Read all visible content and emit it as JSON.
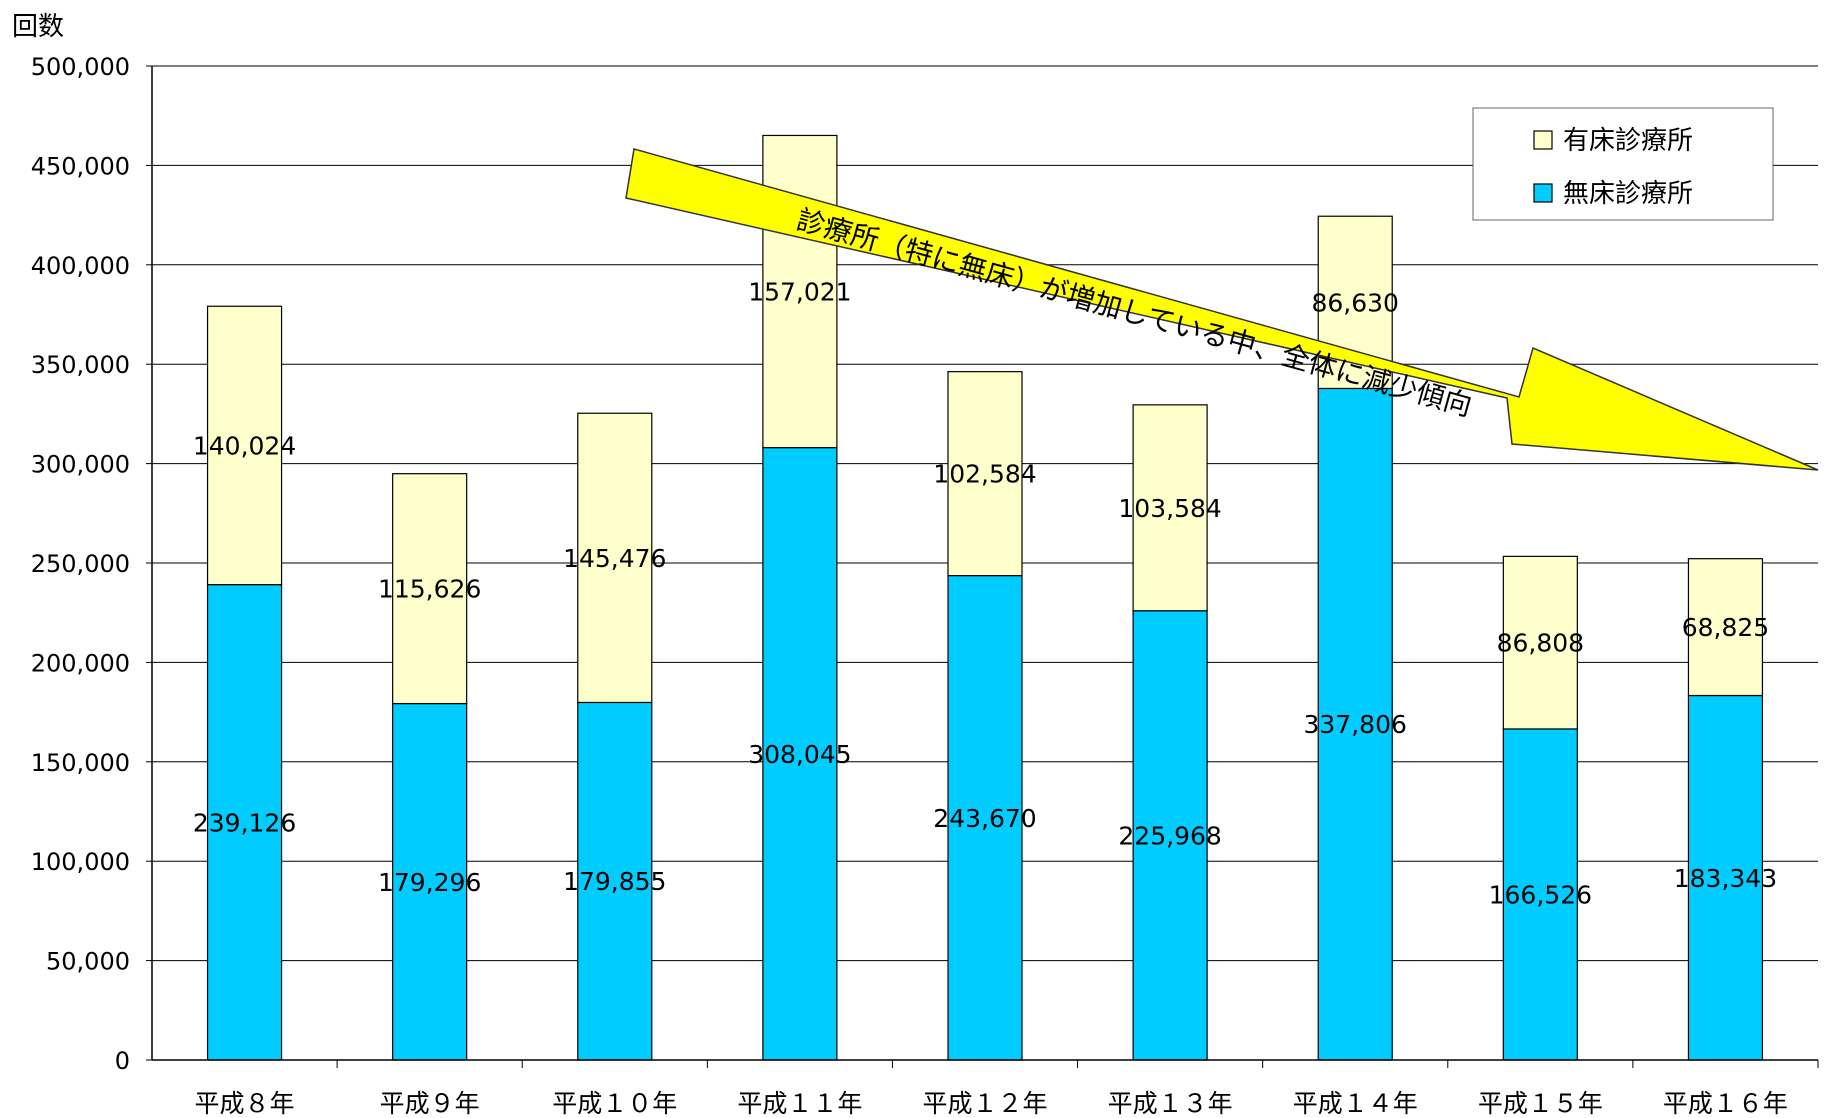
{
  "chart_data": {
    "type": "bar",
    "stacked": true,
    "ylabel": "回数",
    "ylim": [
      0,
      500000
    ],
    "yticks": [
      0,
      50000,
      100000,
      150000,
      200000,
      250000,
      300000,
      350000,
      400000,
      450000,
      500000
    ],
    "ytick_labels": [
      "0",
      "50,000",
      "100,000",
      "150,000",
      "200,000",
      "250,000",
      "300,000",
      "350,000",
      "400,000",
      "450,000",
      "500,000"
    ],
    "grid": true,
    "legend_position": "top-right",
    "categories": [
      "平成８年",
      "平成９年",
      "平成１０年",
      "平成１１年",
      "平成１２年",
      "平成１３年",
      "平成１４年",
      "平成１５年",
      "平成１６年"
    ],
    "series": [
      {
        "name": "無床診療所",
        "color": "#00ccff",
        "values": [
          239126,
          179296,
          179855,
          308045,
          243670,
          225968,
          337806,
          166526,
          183343
        ],
        "labels": [
          "239,126",
          "179,296",
          "179,855",
          "308,045",
          "243,670",
          "225,968",
          "337,806",
          "166,526",
          "183,343"
        ]
      },
      {
        "name": "有床診療所",
        "color": "#ffffcc",
        "values": [
          140024,
          115626,
          145476,
          157021,
          102584,
          103584,
          86630,
          86808,
          68825
        ],
        "labels": [
          "140,024",
          "115,626",
          "145,476",
          "157,021",
          "102,584",
          "103,584",
          "86,630",
          "86,808",
          "68,825"
        ]
      }
    ],
    "annotation": {
      "text": "診療所（特に無床）が増加している中、全体に減少傾向",
      "color": "#ffff00"
    }
  }
}
